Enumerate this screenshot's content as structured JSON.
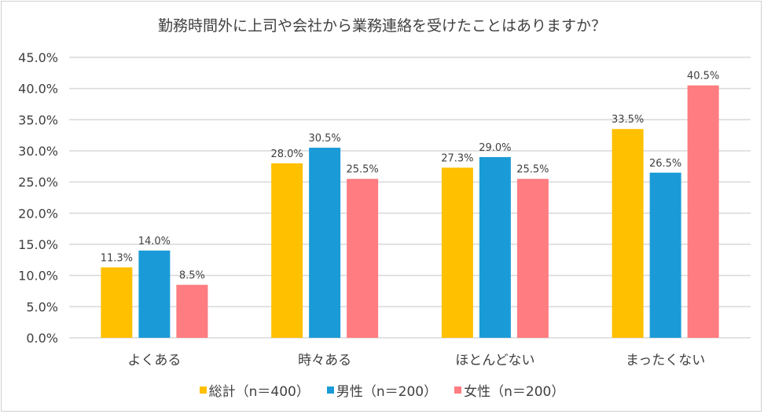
{
  "chart_data": {
    "type": "bar",
    "title": "勤務時間外に上司や会社から業務連絡を受けたことはありますか？",
    "categories": [
      "よくある",
      "時々ある",
      "ほとんどない",
      "まったくない"
    ],
    "series": [
      {
        "name": "総計(n=400)",
        "color": "#FFC000",
        "values": [
          11.3,
          28.0,
          27.3,
          33.5
        ]
      },
      {
        "name": "男性(n=200)",
        "color": "#1A9BD7",
        "values": [
          14.0,
          30.5,
          29.0,
          26.5
        ]
      },
      {
        "name": "女性(n=200)",
        "color": "#FF7C80",
        "values": [
          8.5,
          25.5,
          25.5,
          40.5
        ]
      }
    ],
    "ylim": [
      0,
      45
    ],
    "yticks": [
      "0.0%",
      "5.0%",
      "10.0%",
      "15.0%",
      "20.0%",
      "25.0%",
      "30.0%",
      "35.0%",
      "40.0%",
      "45.0%"
    ],
    "grid": true,
    "legend_position": "bottom",
    "xlabel": "",
    "ylabel": ""
  }
}
